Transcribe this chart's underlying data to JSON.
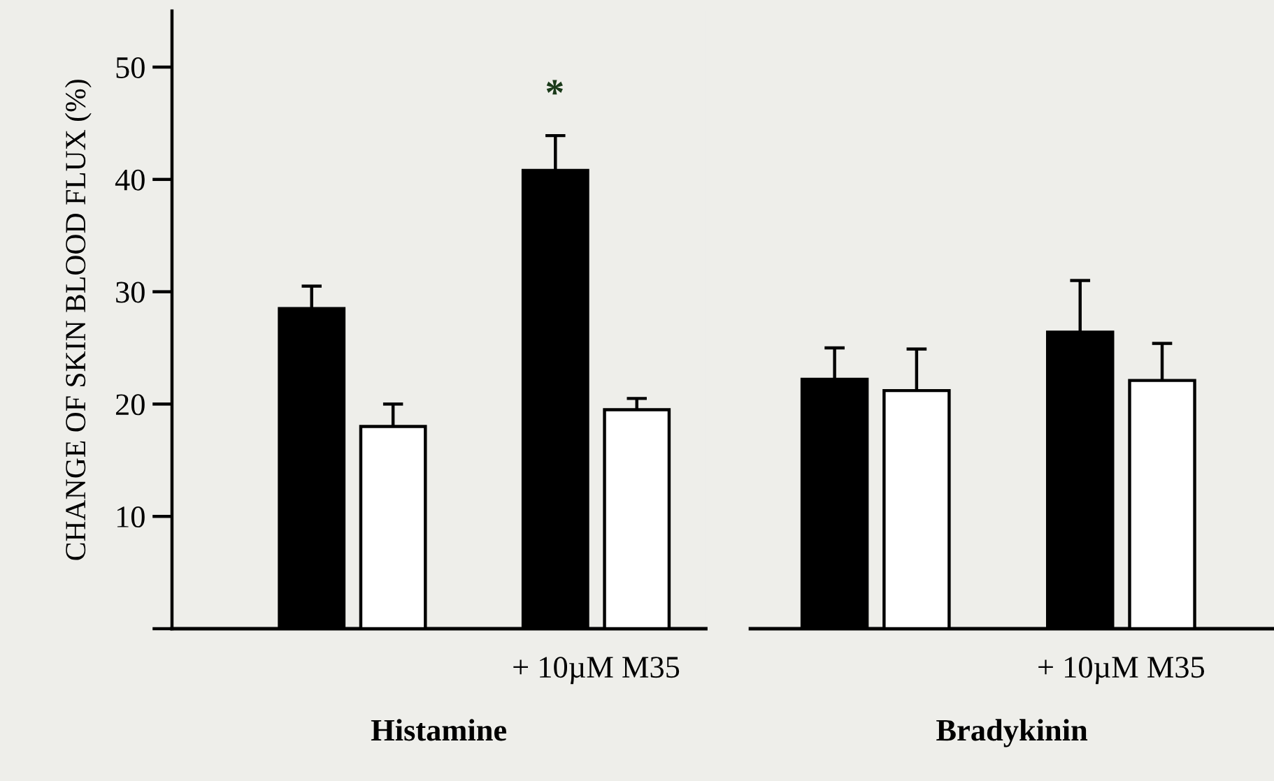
{
  "chart_data": [
    {
      "type": "bar",
      "xlabel": "Histamine",
      "ylabel": "CHANGE OF SKIN BLOOD FLUX (%)",
      "categories": [
        null,
        "+ 10µM M35"
      ],
      "series": [
        {
          "color": "#000000",
          "values": [
            28.5,
            40.8
          ],
          "errors": [
            [
              28.5,
              30.5
            ],
            [
              40.8,
              43.9
            ]
          ]
        },
        {
          "color": "#ffffff",
          "values": [
            18.0,
            19.5
          ],
          "errors": [
            [
              18.0,
              20.0
            ],
            [
              19.5,
              20.5
            ]
          ]
        }
      ],
      "ylim": [
        0,
        55
      ],
      "yticks": [
        {
          "value": 0,
          "label": null
        },
        10,
        20,
        30,
        40,
        50
      ],
      "grid": false,
      "legend": false,
      "annotations": [
        "*"
      ]
    },
    {
      "type": "bar",
      "xlabel": "Bradykinin",
      "categories": [
        null,
        "+ 10µM M35"
      ],
      "series": [
        {
          "color": "#000000",
          "values": [
            22.2,
            26.4
          ],
          "errors": [
            [
              22.2,
              25.0
            ],
            [
              26.4,
              31.0
            ]
          ]
        },
        {
          "color": "#ffffff",
          "values": [
            21.2,
            22.1
          ],
          "errors": [
            [
              21.2,
              24.9
            ],
            [
              22.1,
              25.4
            ]
          ]
        }
      ],
      "ylim": [
        0,
        50
      ],
      "yticks": [
        {
          "value": 0,
          "label": null
        },
        10,
        20,
        30,
        40,
        50
      ],
      "tick_labels": "x",
      "grid": false,
      "legend": false
    }
  ]
}
